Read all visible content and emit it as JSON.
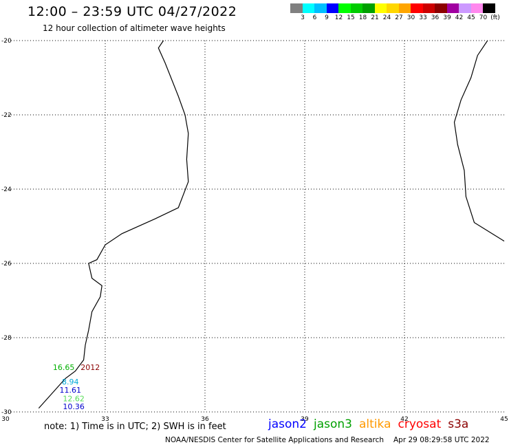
{
  "header": {
    "title": "12:00 – 23:59 UTC 04/27/2022",
    "subtitle": "12 hour collection of altimeter wave heights"
  },
  "colorbar": {
    "colors": [
      "#808080",
      "#00ffff",
      "#00bfff",
      "#0000ff",
      "#00ff00",
      "#00cc00",
      "#00a000",
      "#ffff00",
      "#ffd700",
      "#ffa500",
      "#ff0000",
      "#cc0000",
      "#8b0000",
      "#a000a0",
      "#cc99ff",
      "#ff88ee",
      "#000000"
    ],
    "ticks": [
      "3",
      "6",
      "9",
      "12",
      "15",
      "18",
      "21",
      "24",
      "27",
      "30",
      "33",
      "36",
      "39",
      "42",
      "45",
      "70"
    ],
    "unit": "(ft)"
  },
  "map": {
    "lon_min": 30,
    "lon_max": 45,
    "lat_min": -30,
    "lat_max": -20,
    "lon_labels": [
      {
        "value": 30,
        "text": "30"
      },
      {
        "value": 33,
        "text": "33"
      },
      {
        "value": 36,
        "text": "36"
      },
      {
        "value": 39,
        "text": "39"
      },
      {
        "value": 42,
        "text": "42"
      },
      {
        "value": 45,
        "text": "45"
      }
    ],
    "lat_labels": [
      {
        "value": -20,
        "text": "-20"
      },
      {
        "value": -22,
        "text": "-22"
      },
      {
        "value": -24,
        "text": "-24"
      },
      {
        "value": -26,
        "text": "-26"
      },
      {
        "value": -28,
        "text": "-28"
      },
      {
        "value": -30,
        "text": "-30"
      }
    ],
    "grid_lons": [
      33,
      36,
      39,
      42
    ],
    "grid_lats": [
      -22,
      -24,
      -26,
      -28
    ],
    "coast_africa": [
      [
        31.0,
        -29.9
      ],
      [
        31.4,
        -29.5
      ],
      [
        31.8,
        -29.1
      ],
      [
        32.1,
        -28.9
      ],
      [
        32.35,
        -28.6
      ],
      [
        32.4,
        -28.2
      ],
      [
        32.5,
        -27.8
      ],
      [
        32.6,
        -27.3
      ],
      [
        32.85,
        -26.9
      ],
      [
        32.9,
        -26.6
      ],
      [
        32.6,
        -26.4
      ],
      [
        32.5,
        -26.0
      ],
      [
        32.75,
        -25.9
      ],
      [
        33.0,
        -25.5
      ],
      [
        33.5,
        -25.2
      ],
      [
        34.5,
        -24.8
      ],
      [
        35.2,
        -24.5
      ],
      [
        35.5,
        -23.8
      ],
      [
        35.45,
        -23.2
      ],
      [
        35.5,
        -22.5
      ],
      [
        35.4,
        -22.0
      ],
      [
        35.2,
        -21.5
      ],
      [
        34.8,
        -20.6
      ],
      [
        34.6,
        -20.2
      ],
      [
        34.75,
        -20.0
      ]
    ],
    "coast_madagascar": [
      [
        44.5,
        -20.0
      ],
      [
        44.2,
        -20.4
      ],
      [
        44.0,
        -21.0
      ],
      [
        43.7,
        -21.6
      ],
      [
        43.5,
        -22.2
      ],
      [
        43.6,
        -22.8
      ],
      [
        43.8,
        -23.5
      ],
      [
        43.85,
        -24.2
      ],
      [
        44.1,
        -24.9
      ],
      [
        45.0,
        -25.4
      ]
    ],
    "measurements": [
      {
        "lon": 31.75,
        "lat": -28.87,
        "text": "16.65",
        "color": "#00b000"
      },
      {
        "lon": 32.55,
        "lat": -28.87,
        "text": "2012",
        "color": "#8b0000"
      },
      {
        "lon": 31.95,
        "lat": -29.26,
        "text": "8.94",
        "color": "#00a8d8"
      },
      {
        "lon": 31.95,
        "lat": -29.48,
        "text": "11.61",
        "color": "#0000cc"
      },
      {
        "lon": 32.05,
        "lat": -29.71,
        "text": "12.62",
        "color": "#55dd55"
      },
      {
        "lon": 32.05,
        "lat": -29.93,
        "text": "10.36",
        "color": "#0000cc"
      }
    ]
  },
  "note": "note: 1) Time is in UTC; 2) SWH is in feet",
  "satellites": [
    {
      "name": "jason2",
      "color": "#0000ff"
    },
    {
      "name": "jason3",
      "color": "#00a000"
    },
    {
      "name": "altika",
      "color": "#ff9900"
    },
    {
      "name": "cryosat",
      "color": "#ff0000"
    },
    {
      "name": "s3a",
      "color": "#8b0000"
    }
  ],
  "footer": {
    "credit": "NOAA/NESDIS Center for Satellite Applications and Research",
    "timestamp": "Apr 29 08:29:58 UTC 2022"
  }
}
